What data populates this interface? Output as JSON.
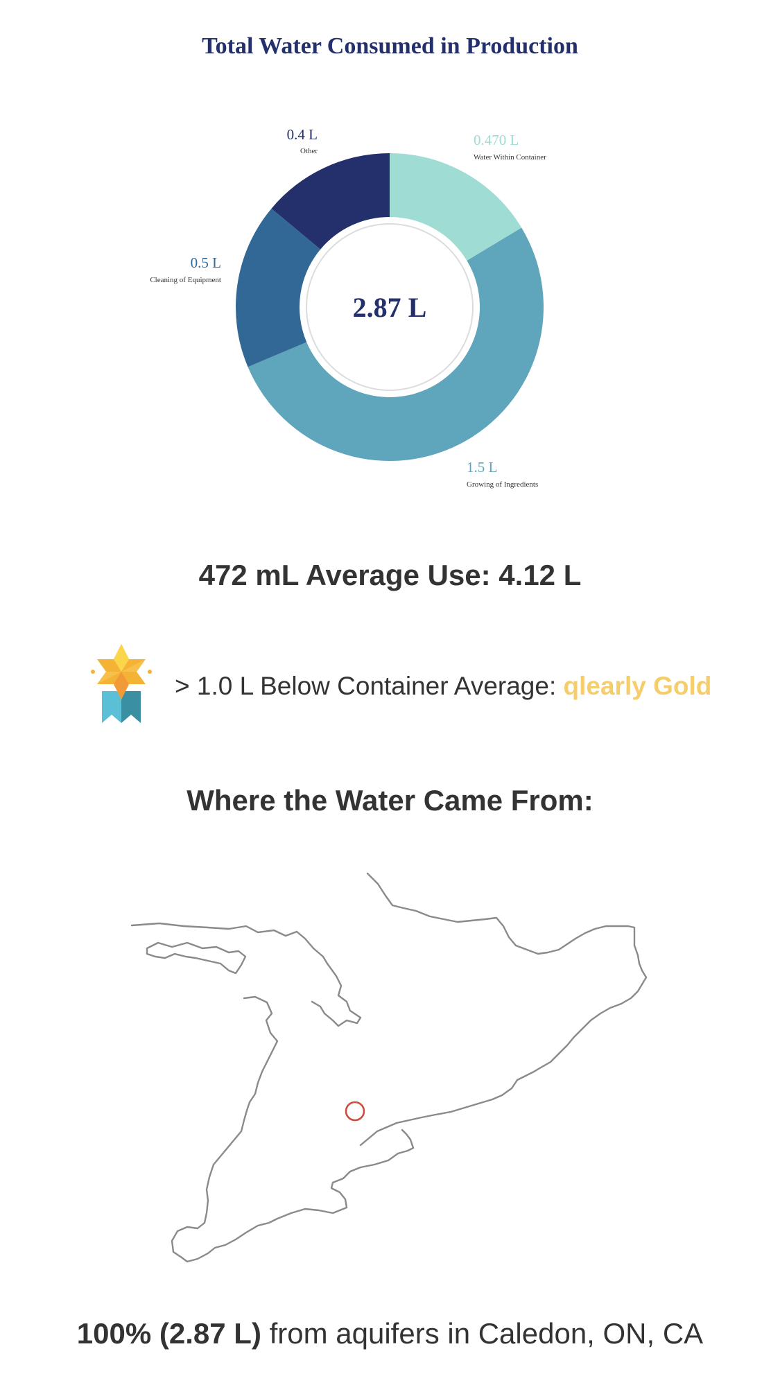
{
  "chart_data": {
    "type": "pie",
    "title": "Total Water Consumed in Production",
    "center_label": "2.87 L",
    "segments": [
      {
        "value_label": "0.470 L",
        "name": "Water Within Container",
        "value": 0.47,
        "color": "#9edcd4"
      },
      {
        "value_label": "1.5 L",
        "name": "Growing of Ingredients",
        "value": 1.5,
        "color": "#5fa5bb"
      },
      {
        "value_label": "0.5 L",
        "name": "Cleaning of Equipment",
        "value": 0.5,
        "color": "#326896"
      },
      {
        "value_label": "0.4 L",
        "name": "Other",
        "value": 0.4,
        "color": "#23306b"
      }
    ]
  },
  "average": {
    "text": "472 mL Average Use: 4.12 L"
  },
  "badge": {
    "icon": "medal-icon",
    "prefix": "> 1.0 L Below Container Average: ",
    "rank": "qlearly Gold",
    "rank_color": "#f6cd6b"
  },
  "source": {
    "heading": "Where the Water Came From:",
    "map_icon": "map-marker-circle",
    "marker_color": "#cc4b3b",
    "summary_bold": "100% (2.87 L)",
    "summary_rest": " from aquifers in Caledon, ON, CA"
  }
}
